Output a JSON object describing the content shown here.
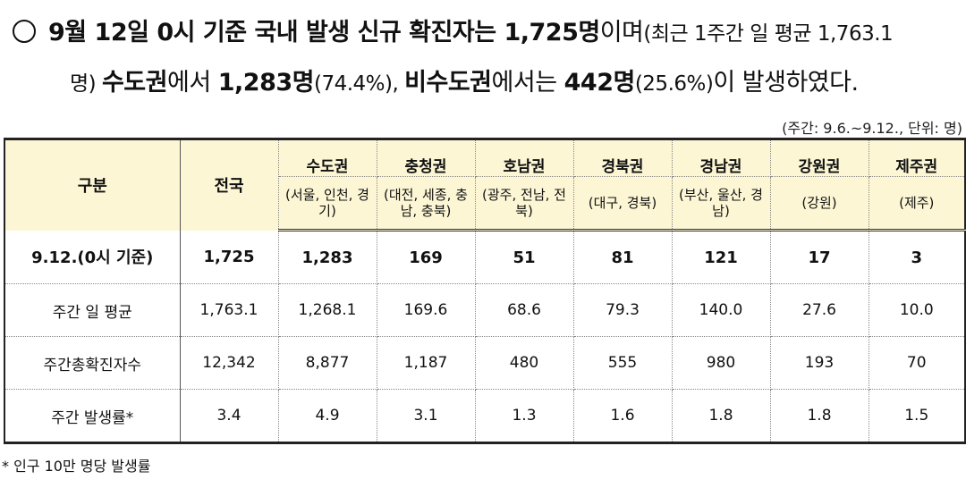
{
  "intro": {
    "l1_a": "9월 12일 0시 기준 국내 발생 신규 확진자는 ",
    "l1_b": "1,725명",
    "l1_c": "이며",
    "l1_d": "(최근 1주간 일 평균 1,763.1",
    "l2_a": "명) ",
    "l2_b": "수도권",
    "l2_c": "에서 ",
    "l2_d": "1,283명",
    "l2_e": "(74.4%), ",
    "l2_f": "비수도권",
    "l2_g": "에서는 ",
    "l2_h": "442명",
    "l2_i": "(25.6%)",
    "l2_j": "이 발생하였다."
  },
  "unit_note": "(주간: 9.6.~9.12., 단위: 명)",
  "table": {
    "header_label": "구분",
    "header_nationwide": "전국",
    "regions": [
      {
        "name": "수도권",
        "sub": "(서울, 인천, 경기)"
      },
      {
        "name": "충청권",
        "sub": "(대전, 세종, 충남, 충북)"
      },
      {
        "name": "호남권",
        "sub": "(광주, 전남, 전북)"
      },
      {
        "name": "경북권",
        "sub": "(대구, 경북)"
      },
      {
        "name": "경남권",
        "sub": "(부산, 울산, 경남)"
      },
      {
        "name": "강원권",
        "sub": "(강원)"
      },
      {
        "name": "제주권",
        "sub": "(제주)"
      }
    ],
    "rows": [
      {
        "label": "9.12.(0시 기준)",
        "values": [
          "1,725",
          "1,283",
          "169",
          "51",
          "81",
          "121",
          "17",
          "3"
        ]
      },
      {
        "label": "주간 일 평균",
        "values": [
          "1,763.1",
          "1,268.1",
          "169.6",
          "68.6",
          "79.3",
          "140.0",
          "27.6",
          "10.0"
        ]
      },
      {
        "label": "주간총확진자수",
        "values": [
          "12,342",
          "8,877",
          "1,187",
          "480",
          "555",
          "980",
          "193",
          "70"
        ]
      },
      {
        "label": "주간 발생률*",
        "values": [
          "3.4",
          "4.9",
          "3.1",
          "1.3",
          "1.6",
          "1.8",
          "1.8",
          "1.5"
        ]
      }
    ]
  },
  "footnote": "* 인구 10만 명당 발생률"
}
